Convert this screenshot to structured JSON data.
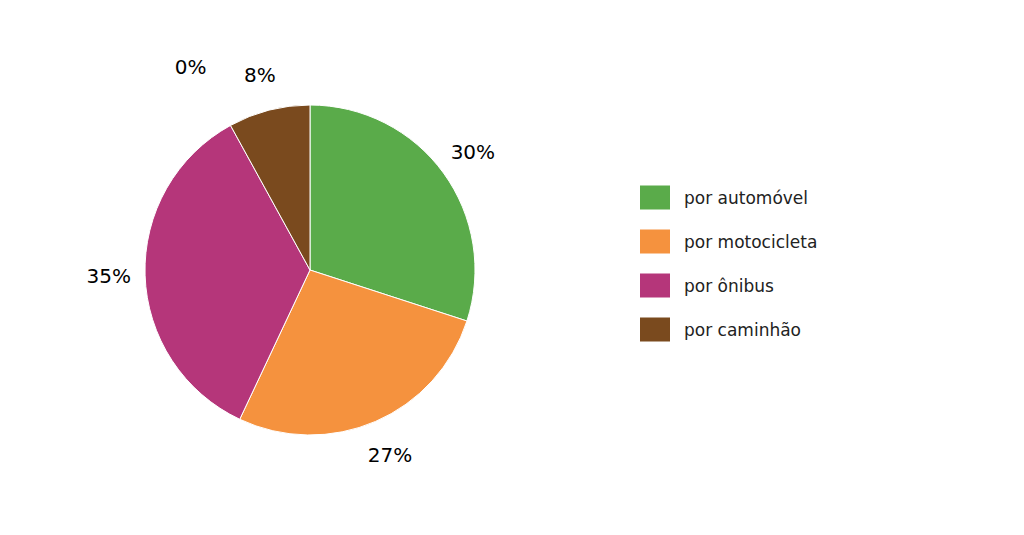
{
  "chart_data": {
    "type": "pie",
    "categories": [
      "por automóvel",
      "por motocicleta",
      "por ônibus",
      "por caminhão"
    ],
    "values": [
      30,
      27,
      35,
      8
    ],
    "value_labels": [
      "30%",
      "27%",
      "35%",
      "8%"
    ],
    "colors": [
      "#5aab4a",
      "#f5923e",
      "#b5367a",
      "#7a4a1e"
    ],
    "data_labels": true,
    "legend": "right",
    "annotations": [
      "0%"
    ]
  }
}
